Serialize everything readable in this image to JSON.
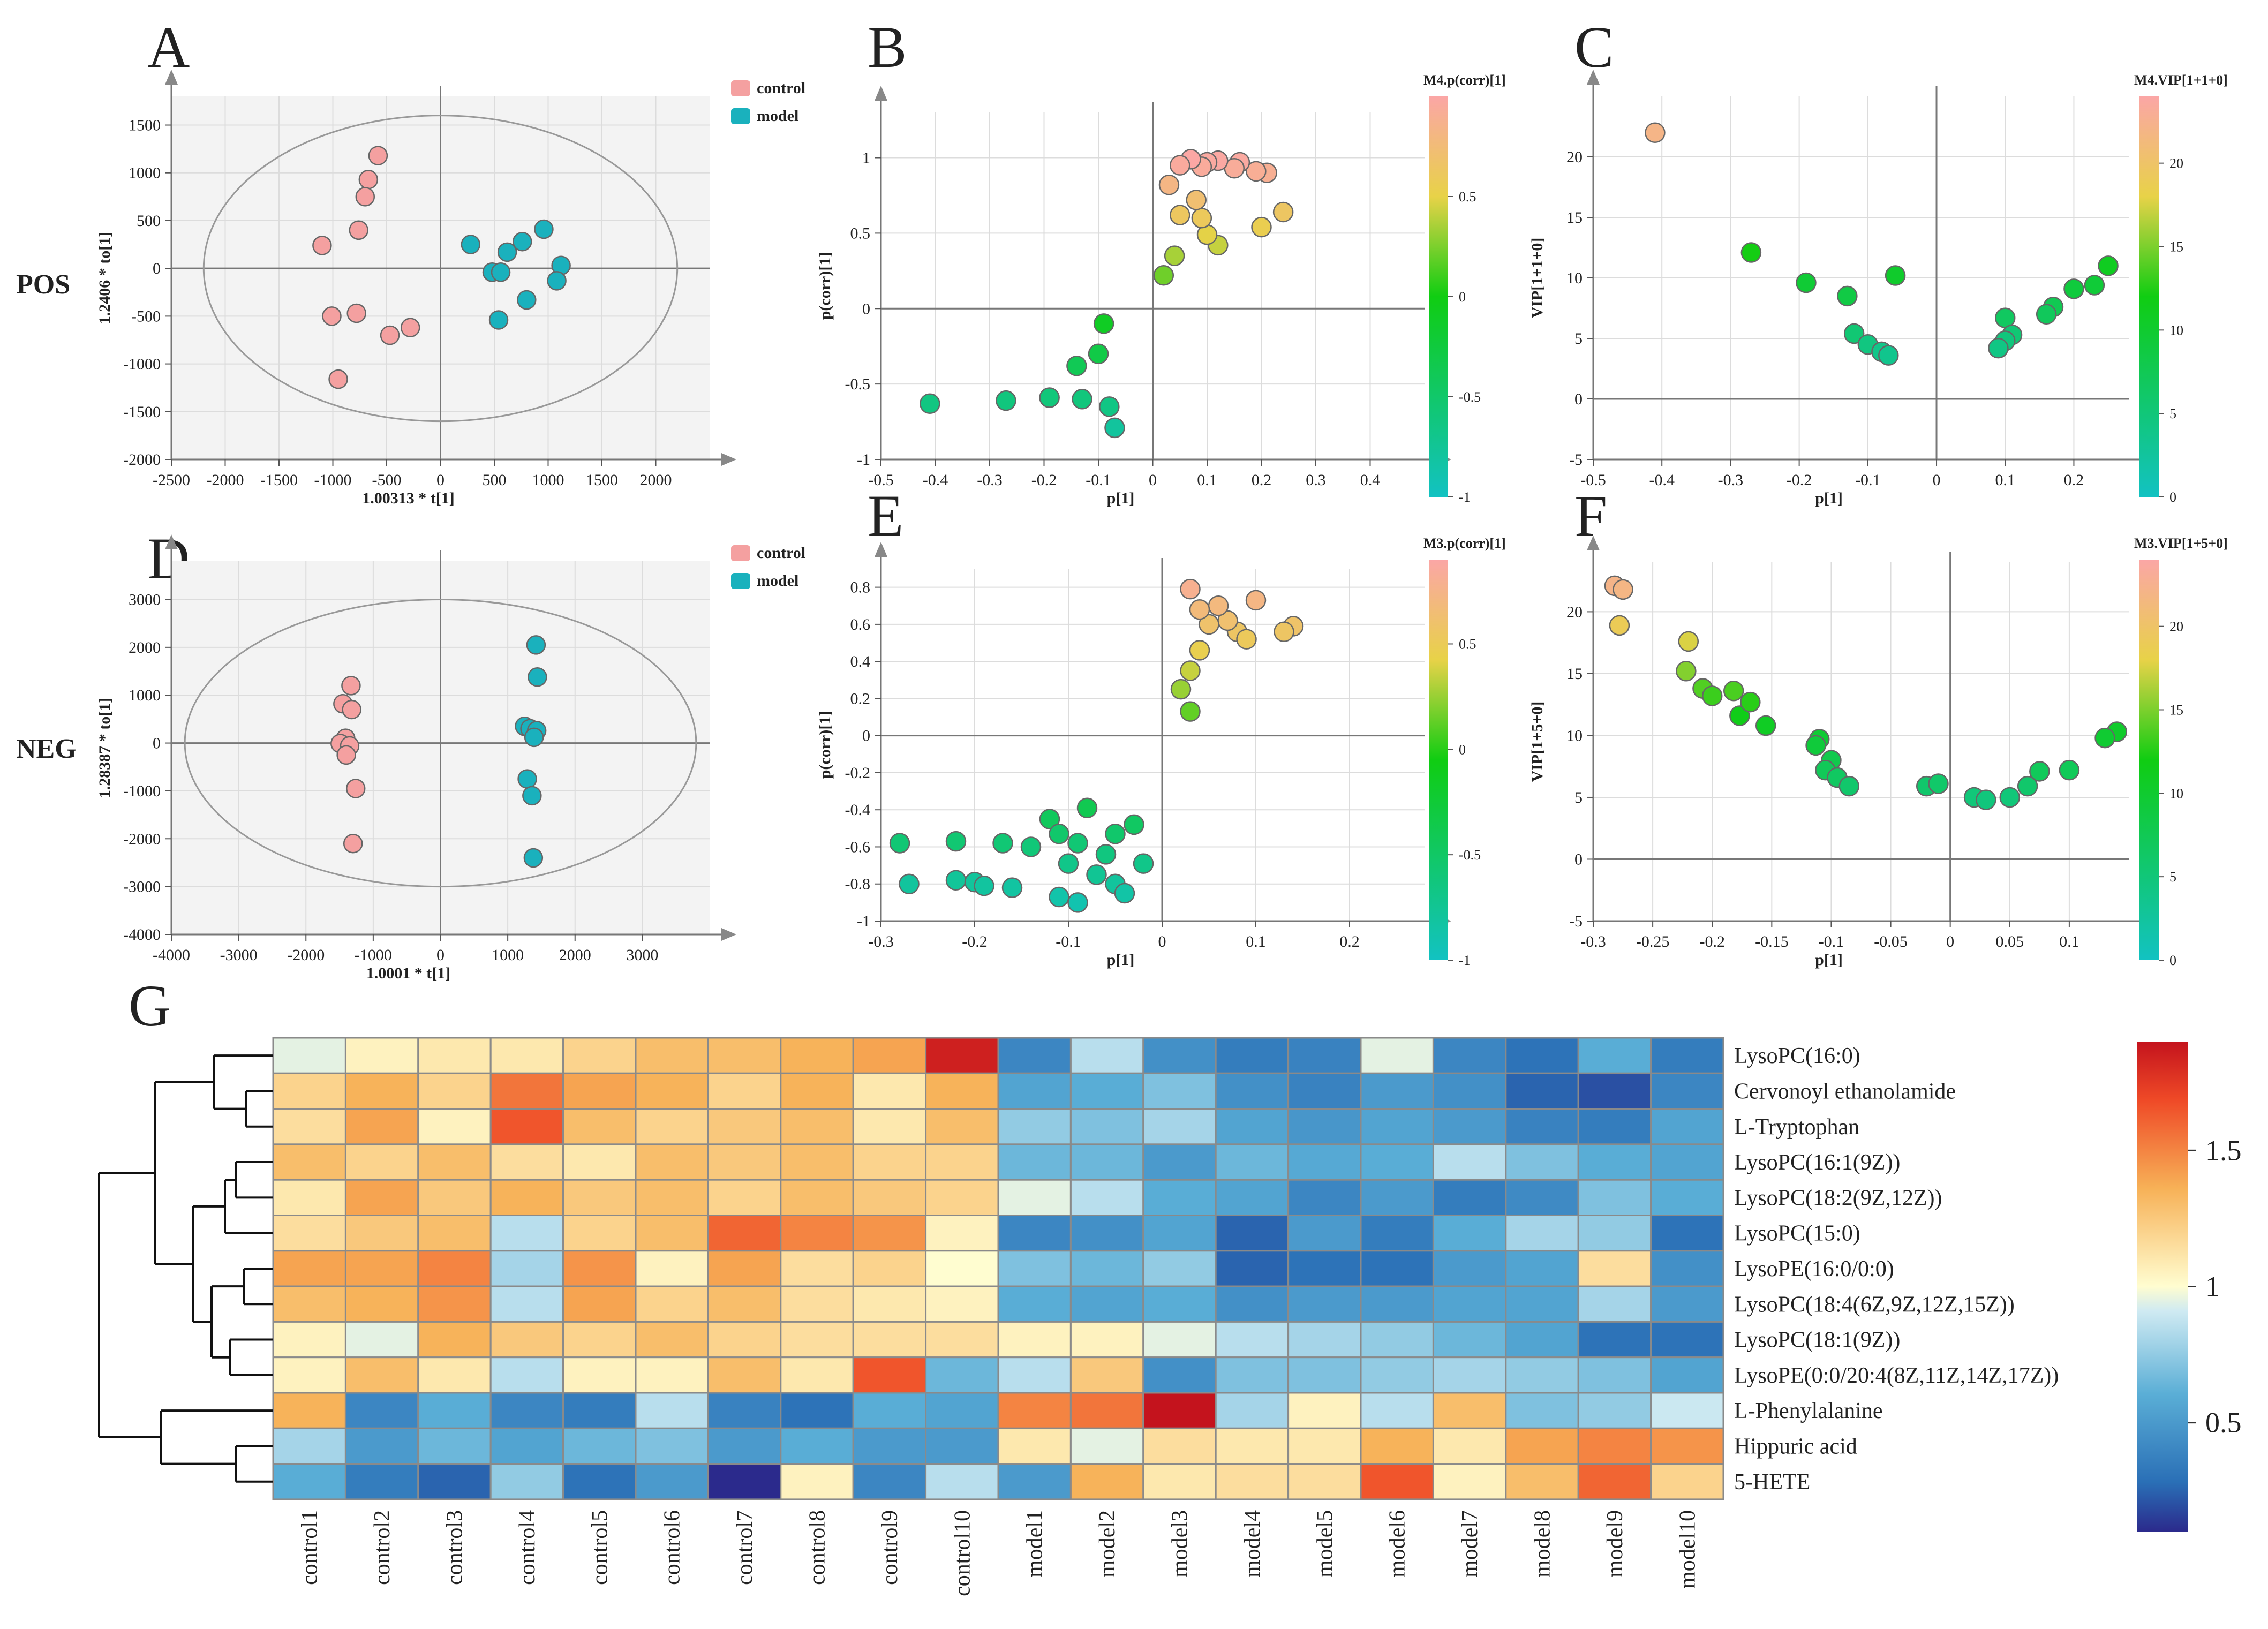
{
  "row_labels": {
    "pos": "POS",
    "neg": "NEG"
  },
  "panels": {
    "A": {
      "letter": "A",
      "xlabel": "1.00313 * t[1]",
      "ylabel": "1.2406 * to[1]",
      "xlim": [
        -2500,
        2500
      ],
      "ylim": [
        -2000,
        1800
      ],
      "xticks": [
        -2500,
        -2000,
        -1500,
        -1000,
        -500,
        0,
        500,
        1000,
        1500,
        2000
      ],
      "yticks": [
        -2000,
        -1500,
        -1000,
        -500,
        0,
        500,
        1000,
        1500
      ],
      "ellipse": {
        "rx": 2200,
        "ry": 1600
      },
      "legend": [
        "control",
        "model"
      ],
      "groups": {
        "control": [
          [
            -580,
            1180
          ],
          [
            -670,
            930
          ],
          [
            -700,
            750
          ],
          [
            -760,
            400
          ],
          [
            -1100,
            240
          ],
          [
            -1010,
            -500
          ],
          [
            -780,
            -470
          ],
          [
            -470,
            -700
          ],
          [
            -280,
            -620
          ],
          [
            -950,
            -1160
          ]
        ],
        "model": [
          [
            280,
            250
          ],
          [
            960,
            410
          ],
          [
            760,
            280
          ],
          [
            620,
            170
          ],
          [
            1120,
            30
          ],
          [
            480,
            -40
          ],
          [
            560,
            -40
          ],
          [
            1080,
            -130
          ],
          [
            800,
            -330
          ],
          [
            540,
            -540
          ]
        ]
      },
      "colors": {
        "control": "#f4a0a0",
        "model": "#1ab1bd"
      }
    },
    "D": {
      "letter": "D",
      "xlabel": "1.0001 * t[1]",
      "ylabel": "1.28387 * to[1]",
      "xlim": [
        -4000,
        4000
      ],
      "ylim": [
        -4000,
        3800
      ],
      "xticks": [
        -4000,
        -3000,
        -2000,
        -1000,
        0,
        1000,
        2000,
        3000
      ],
      "yticks": [
        -4000,
        -3000,
        -2000,
        -1000,
        0,
        1000,
        2000,
        3000
      ],
      "ellipse": {
        "rx": 3800,
        "ry": 3000
      },
      "legend": [
        "control",
        "model"
      ],
      "groups": {
        "control": [
          [
            -1330,
            1200
          ],
          [
            -1450,
            820
          ],
          [
            -1320,
            700
          ],
          [
            -1410,
            100
          ],
          [
            -1490,
            -10
          ],
          [
            -1350,
            -60
          ],
          [
            -1400,
            -250
          ],
          [
            -1260,
            -950
          ],
          [
            -1300,
            -2100
          ]
        ],
        "model": [
          [
            1420,
            2050
          ],
          [
            1440,
            1380
          ],
          [
            1250,
            350
          ],
          [
            1330,
            300
          ],
          [
            1430,
            260
          ],
          [
            1390,
            120
          ],
          [
            1290,
            -750
          ],
          [
            1360,
            -1100
          ],
          [
            1380,
            -2400
          ]
        ]
      },
      "colors": {
        "control": "#f4a0a0",
        "model": "#1ab1bd"
      }
    },
    "B": {
      "letter": "B",
      "xlabel": "p[1]",
      "ylabel": "p(corr)[1]",
      "xlim": [
        -0.5,
        0.5
      ],
      "ylim": [
        -1,
        1.3
      ],
      "xticks": [
        -0.5,
        -0.4,
        -0.3,
        -0.2,
        -0.1,
        0,
        0.1,
        0.2,
        0.3,
        0.4
      ],
      "yticks": [
        -1,
        -0.5,
        0,
        0.5,
        1
      ],
      "colorbar": {
        "title": "M4.p(corr)[1]",
        "ticks": [
          0.5,
          0,
          -0.5,
          -1
        ],
        "range": [
          -1,
          1
        ]
      },
      "points": [
        [
          -0.41,
          -0.63
        ],
        [
          -0.27,
          -0.61
        ],
        [
          -0.19,
          -0.59
        ],
        [
          -0.13,
          -0.6
        ],
        [
          -0.14,
          -0.38
        ],
        [
          -0.09,
          -0.1
        ],
        [
          -0.08,
          -0.65
        ],
        [
          -0.1,
          -0.3
        ],
        [
          -0.07,
          -0.79
        ],
        [
          0.24,
          0.64
        ],
        [
          0.21,
          0.9
        ],
        [
          0.19,
          0.91
        ],
        [
          0.2,
          0.54
        ],
        [
          0.16,
          0.97
        ],
        [
          0.15,
          0.93
        ],
        [
          0.12,
          0.98
        ],
        [
          0.1,
          0.97
        ],
        [
          0.09,
          0.94
        ],
        [
          0.07,
          0.99
        ],
        [
          0.05,
          0.95
        ],
        [
          0.12,
          0.42
        ],
        [
          0.1,
          0.49
        ],
        [
          0.09,
          0.6
        ],
        [
          0.08,
          0.72
        ],
        [
          0.05,
          0.62
        ],
        [
          0.04,
          0.35
        ],
        [
          0.03,
          0.82
        ],
        [
          0.02,
          0.22
        ]
      ]
    },
    "E": {
      "letter": "E",
      "xlabel": "p[1]",
      "ylabel": "p(corr)[1]",
      "xlim": [
        -0.3,
        0.28
      ],
      "ylim": [
        -1,
        0.9
      ],
      "xticks": [
        -0.3,
        -0.2,
        -0.1,
        0,
        0.1,
        0.2
      ],
      "yticks": [
        -1,
        -0.8,
        -0.6,
        -0.4,
        -0.2,
        0,
        0.2,
        0.4,
        0.6,
        0.8
      ],
      "colorbar": {
        "title": "M3.p(corr)[1]",
        "ticks": [
          0.5,
          0,
          -0.5,
          -1
        ],
        "range": [
          -1,
          0.9
        ]
      },
      "points": [
        [
          -0.28,
          -0.58
        ],
        [
          -0.27,
          -0.8
        ],
        [
          -0.22,
          -0.57
        ],
        [
          -0.22,
          -0.78
        ],
        [
          -0.2,
          -0.79
        ],
        [
          -0.19,
          -0.81
        ],
        [
          -0.17,
          -0.58
        ],
        [
          -0.16,
          -0.82
        ],
        [
          -0.14,
          -0.6
        ],
        [
          -0.12,
          -0.45
        ],
        [
          -0.11,
          -0.53
        ],
        [
          -0.1,
          -0.69
        ],
        [
          -0.09,
          -0.58
        ],
        [
          -0.08,
          -0.39
        ],
        [
          -0.11,
          -0.87
        ],
        [
          -0.09,
          -0.9
        ],
        [
          -0.07,
          -0.75
        ],
        [
          -0.06,
          -0.64
        ],
        [
          -0.05,
          -0.53
        ],
        [
          -0.05,
          -0.8
        ],
        [
          -0.04,
          -0.85
        ],
        [
          -0.03,
          -0.48
        ],
        [
          -0.02,
          -0.69
        ],
        [
          0.14,
          0.59
        ],
        [
          0.13,
          0.56
        ],
        [
          0.1,
          0.73
        ],
        [
          0.08,
          0.56
        ],
        [
          0.09,
          0.52
        ],
        [
          0.07,
          0.62
        ],
        [
          0.06,
          0.7
        ],
        [
          0.05,
          0.6
        ],
        [
          0.04,
          0.46
        ],
        [
          0.04,
          0.68
        ],
        [
          0.03,
          0.79
        ],
        [
          0.03,
          0.35
        ],
        [
          0.02,
          0.25
        ],
        [
          0.03,
          0.13
        ]
      ]
    },
    "C": {
      "letter": "C",
      "xlabel": "p[1]",
      "ylabel": "VIP[1+1+0]",
      "xlim": [
        -0.5,
        0.28
      ],
      "ylim": [
        -5,
        25
      ],
      "xticks": [
        -0.5,
        -0.4,
        -0.3,
        -0.2,
        -0.1,
        0,
        0.1,
        0.2
      ],
      "yticks": [
        -5,
        0,
        5,
        10,
        15,
        20
      ],
      "colorbar": {
        "title": "M4.VIP[1+1+0]",
        "ticks": [
          20,
          15,
          10,
          5,
          0
        ],
        "range": [
          0,
          24
        ]
      },
      "points": [
        [
          -0.41,
          22
        ],
        [
          -0.27,
          12.1
        ],
        [
          -0.19,
          9.6
        ],
        [
          -0.13,
          8.5
        ],
        [
          -0.06,
          10.2
        ],
        [
          -0.12,
          5.4
        ],
        [
          -0.1,
          4.5
        ],
        [
          -0.08,
          3.9
        ],
        [
          -0.07,
          3.6
        ],
        [
          0.25,
          11
        ],
        [
          0.23,
          9.4
        ],
        [
          0.2,
          9.1
        ],
        [
          0.17,
          7.6
        ],
        [
          0.16,
          7.0
        ],
        [
          0.1,
          6.7
        ],
        [
          0.11,
          5.3
        ],
        [
          0.1,
          4.8
        ],
        [
          0.09,
          4.2
        ]
      ]
    },
    "F": {
      "letter": "F",
      "xlabel": "p[1]",
      "ylabel": "VIP[1+5+0]",
      "xlim": [
        -0.3,
        0.15
      ],
      "ylim": [
        -5,
        24
      ],
      "xticks": [
        -0.3,
        -0.25,
        -0.2,
        -0.15,
        -0.1,
        -0.05,
        0,
        0.05,
        0.1
      ],
      "yticks": [
        -5,
        0,
        5,
        10,
        15,
        20
      ],
      "colorbar": {
        "title": "M3.VIP[1+5+0]",
        "ticks": [
          20,
          15,
          10,
          5,
          0
        ],
        "range": [
          0,
          24
        ]
      },
      "points": [
        [
          -0.282,
          22.1
        ],
        [
          -0.275,
          21.8
        ],
        [
          -0.278,
          18.9
        ],
        [
          -0.22,
          17.6
        ],
        [
          -0.222,
          15.2
        ],
        [
          -0.208,
          13.8
        ],
        [
          -0.2,
          13.2
        ],
        [
          -0.182,
          13.6
        ],
        [
          -0.177,
          11.6
        ],
        [
          -0.168,
          12.7
        ],
        [
          -0.155,
          10.8
        ],
        [
          -0.11,
          9.7
        ],
        [
          -0.113,
          9.2
        ],
        [
          -0.1,
          8.0
        ],
        [
          -0.105,
          7.2
        ],
        [
          -0.095,
          6.6
        ],
        [
          -0.085,
          5.9
        ],
        [
          0.14,
          10.3
        ],
        [
          0.13,
          9.8
        ],
        [
          0.1,
          7.2
        ],
        [
          0.075,
          7.1
        ],
        [
          0.065,
          5.9
        ],
        [
          0.05,
          5.0
        ],
        [
          -0.02,
          5.9
        ],
        [
          -0.01,
          6.1
        ],
        [
          0.02,
          5.0
        ],
        [
          0.03,
          4.8
        ]
      ]
    }
  },
  "chart_data": [
    {
      "type": "scatter",
      "panel": "A",
      "title": "POS",
      "xlabel": "1.00313 * t[1]",
      "ylabel": "1.2406 * to[1]",
      "xlim": [
        -2500,
        2500
      ],
      "ylim": [
        -2000,
        1800
      ],
      "legend": [
        "control",
        "model"
      ]
    },
    {
      "type": "scatter",
      "panel": "B",
      "xlabel": "p[1]",
      "ylabel": "p(corr)[1]",
      "colorbar": "M4.p(corr)[1]"
    },
    {
      "type": "scatter",
      "panel": "C",
      "xlabel": "p[1]",
      "ylabel": "VIP[1+1+0]",
      "colorbar": "M4.VIP[1+1+0]"
    },
    {
      "type": "scatter",
      "panel": "D",
      "title": "NEG",
      "xlabel": "1.0001 * t[1]",
      "ylabel": "1.28387 * to[1]",
      "xlim": [
        -4000,
        4000
      ],
      "ylim": [
        -4000,
        3800
      ],
      "legend": [
        "control",
        "model"
      ]
    },
    {
      "type": "scatter",
      "panel": "E",
      "xlabel": "p[1]",
      "ylabel": "p(corr)[1]",
      "colorbar": "M3.p(corr)[1]"
    },
    {
      "type": "scatter",
      "panel": "F",
      "xlabel": "p[1]",
      "ylabel": "VIP[1+5+0]",
      "colorbar": "M3.VIP[1+5+0]"
    },
    {
      "type": "heatmap",
      "panel": "G",
      "columns": [
        "control1",
        "control2",
        "control3",
        "control4",
        "control5",
        "control6",
        "control7",
        "control8",
        "control9",
        "control10",
        "model1",
        "model2",
        "model3",
        "model4",
        "model5",
        "model6",
        "model7",
        "model8",
        "model9",
        "model10"
      ],
      "rows": [
        "LysoPC(16:0)",
        "Cervonoyl ethanolamide",
        "L-Tryptophan",
        "LysoPC(16:1(9Z))",
        "LysoPC(18:2(9Z,12Z))",
        "LysoPC(15:0)",
        "LysoPE(16:0/0:0)",
        "LysoPC(18:4(6Z,9Z,12Z,15Z))",
        "LysoPC(18:1(9Z))",
        "LysoPE(0:0/20:4(8Z,11Z,14Z,17Z))",
        "L-Phenylalanine",
        "Hippuric acid",
        "5-HETE"
      ],
      "values": [
        [
          0.95,
          1.05,
          1.1,
          1.1,
          1.2,
          1.3,
          1.3,
          1.35,
          1.4,
          1.85,
          0.4,
          0.85,
          0.45,
          0.35,
          0.38,
          0.95,
          0.4,
          0.3,
          0.6,
          0.35
        ],
        [
          1.2,
          1.35,
          1.2,
          1.55,
          1.4,
          1.35,
          1.2,
          1.35,
          1.1,
          1.35,
          0.55,
          0.6,
          0.7,
          0.45,
          0.38,
          0.5,
          0.45,
          0.25,
          0.2,
          0.4
        ],
        [
          1.15,
          1.4,
          1.05,
          1.65,
          1.3,
          1.2,
          1.25,
          1.3,
          1.1,
          1.3,
          0.75,
          0.7,
          0.8,
          0.55,
          0.48,
          0.55,
          0.5,
          0.38,
          0.35,
          0.55
        ],
        [
          1.3,
          1.2,
          1.3,
          1.15,
          1.1,
          1.3,
          1.25,
          1.3,
          1.2,
          1.2,
          0.65,
          0.65,
          0.5,
          0.65,
          0.58,
          0.6,
          0.85,
          0.7,
          0.6,
          0.55
        ],
        [
          1.1,
          1.4,
          1.25,
          1.35,
          1.25,
          1.3,
          1.2,
          1.3,
          1.25,
          1.2,
          0.95,
          0.85,
          0.6,
          0.55,
          0.4,
          0.5,
          0.35,
          0.42,
          0.7,
          0.6
        ],
        [
          1.15,
          1.25,
          1.3,
          0.85,
          1.2,
          1.3,
          1.6,
          1.5,
          1.45,
          1.05,
          0.4,
          0.45,
          0.55,
          0.25,
          0.5,
          0.35,
          0.6,
          0.8,
          0.75,
          0.3
        ],
        [
          1.4,
          1.4,
          1.5,
          0.8,
          1.45,
          1.05,
          1.4,
          1.15,
          1.2,
          1.0,
          0.7,
          0.65,
          0.75,
          0.25,
          0.3,
          0.3,
          0.5,
          0.55,
          1.15,
          0.45
        ],
        [
          1.3,
          1.35,
          1.45,
          0.85,
          1.4,
          1.2,
          1.3,
          1.15,
          1.1,
          1.05,
          0.6,
          0.55,
          0.6,
          0.45,
          0.5,
          0.5,
          0.55,
          0.55,
          0.8,
          0.5
        ],
        [
          1.05,
          0.95,
          1.35,
          1.25,
          1.2,
          1.3,
          1.2,
          1.15,
          1.15,
          1.15,
          1.05,
          1.05,
          0.95,
          0.85,
          0.8,
          0.75,
          0.65,
          0.55,
          0.3,
          0.3
        ],
        [
          1.05,
          1.3,
          1.1,
          0.85,
          1.05,
          1.05,
          1.3,
          1.1,
          1.65,
          0.65,
          0.85,
          1.25,
          0.45,
          0.7,
          0.7,
          0.75,
          0.8,
          0.75,
          0.7,
          0.55
        ],
        [
          1.35,
          0.4,
          0.6,
          0.4,
          0.35,
          0.85,
          0.38,
          0.3,
          0.6,
          0.55,
          1.5,
          1.55,
          1.9,
          0.8,
          1.05,
          0.85,
          1.3,
          0.7,
          0.75,
          0.9
        ],
        [
          0.8,
          0.5,
          0.65,
          0.55,
          0.65,
          0.7,
          0.5,
          0.6,
          0.5,
          0.5,
          1.1,
          0.95,
          1.15,
          1.1,
          1.1,
          1.35,
          1.1,
          1.4,
          1.5,
          1.45
        ],
        [
          0.6,
          0.35,
          0.25,
          0.75,
          0.3,
          0.5,
          0.1,
          1.05,
          0.4,
          0.85,
          0.5,
          1.35,
          1.1,
          1.15,
          1.15,
          1.65,
          1.05,
          1.3,
          1.6,
          1.2
        ]
      ],
      "colorbar": {
        "ticks": [
          1.5,
          1,
          0.5
        ],
        "range": [
          0.1,
          1.9
        ]
      }
    }
  ],
  "heatmap_letter": "G"
}
